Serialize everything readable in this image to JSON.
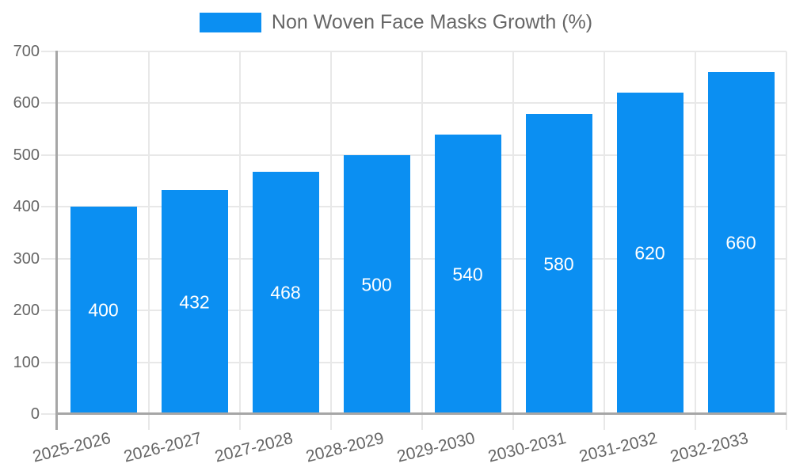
{
  "legend": {
    "label": "Non Woven Face Masks Growth (%)"
  },
  "chart_data": {
    "type": "bar",
    "title": "",
    "categories": [
      "2025-2026",
      "2026-2027",
      "2027-2028",
      "2028-2029",
      "2029-2030",
      "2030-2031",
      "2031-2032",
      "2032-2033"
    ],
    "values": [
      400,
      432,
      468,
      500,
      540,
      580,
      620,
      660
    ],
    "series_name": "Non Woven Face Masks Growth (%)",
    "xlabel": "",
    "ylabel": "",
    "ylim": [
      0,
      700
    ],
    "y_ticks": [
      0,
      100,
      200,
      300,
      400,
      500,
      600,
      700
    ],
    "grid": true,
    "legend_position": "top-center",
    "value_labels": "inside-center",
    "colors": {
      "bar": "#0b8ff2",
      "value_label": "#ffffff",
      "grid": "#e8e8e8",
      "axis": "#a6a6a6",
      "text": "#666666",
      "background": "#ffffff"
    }
  }
}
